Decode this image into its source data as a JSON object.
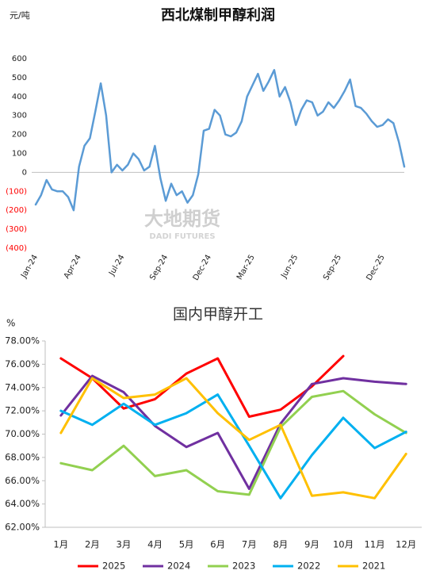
{
  "chart_data": [
    {
      "type": "line",
      "title": "西北煤制甲醇利润",
      "ylabel": "元/吨",
      "watermark": [
        "大地期货",
        "DADI FUTURES"
      ],
      "categories": [
        "Jan-24",
        null,
        null,
        null,
        null,
        null,
        null,
        null,
        "Apr-24",
        null,
        null,
        null,
        null,
        null,
        null,
        null,
        "Jul-24",
        null,
        null,
        null,
        null,
        null,
        null,
        null,
        "Sep-24",
        null,
        null,
        null,
        null,
        null,
        null,
        null,
        "Dec-24",
        null,
        null,
        null,
        null,
        null,
        null,
        null,
        "Mar-25",
        null,
        null,
        null,
        null,
        null,
        null,
        null,
        "Jun-25",
        null,
        null,
        null,
        null,
        null,
        null,
        null,
        "Sep-25",
        null,
        null,
        null,
        null,
        null,
        null,
        null,
        "Dec-25",
        null,
        null,
        null,
        null
      ],
      "series": [
        {
          "name": "西北煤制甲醇利润",
          "color": "#5b9bd5",
          "values": [
            -170,
            -120,
            -40,
            -90,
            -100,
            -100,
            -130,
            -200,
            30,
            140,
            180,
            320,
            470,
            300,
            0,
            40,
            10,
            40,
            100,
            70,
            10,
            30,
            140,
            -30,
            -150,
            -60,
            -120,
            -100,
            -160,
            -120,
            -10,
            220,
            230,
            330,
            300,
            200,
            190,
            210,
            270,
            400,
            460,
            520,
            430,
            480,
            540,
            400,
            450,
            370,
            250,
            330,
            380,
            370,
            300,
            320,
            370,
            340,
            380,
            430,
            490,
            350,
            340,
            310,
            270,
            240,
            250,
            280,
            260,
            160,
            30
          ]
        }
      ],
      "ylim": [
        -400,
        600
      ],
      "yticks": [
        600,
        500,
        400,
        300,
        200,
        100,
        0,
        {
          "value": -100,
          "label": "(100)"
        },
        {
          "value": -200,
          "label": "(200)"
        },
        {
          "value": -300,
          "label": "(300)"
        },
        {
          "value": -400,
          "label": "(400)"
        }
      ],
      "negative_tick_color": "#ff0000",
      "grid": false,
      "legend": false
    },
    {
      "type": "line",
      "title": "国内甲醇开工",
      "ylabel": "%",
      "categories": [
        "1月",
        "2月",
        "3月",
        "4月",
        "5月",
        "6月",
        "7月",
        "8月",
        "9月",
        "10月",
        "11月",
        "12月"
      ],
      "series": [
        {
          "name": "2025",
          "color": "#ff0000",
          "values": [
            76.5,
            74.8,
            72.2,
            73.0,
            75.2,
            76.5,
            71.5,
            72.1,
            74.1,
            76.7,
            null,
            null
          ]
        },
        {
          "name": "2024",
          "color": "#7030a0",
          "values": [
            71.6,
            75.0,
            73.6,
            70.7,
            68.9,
            70.1,
            65.3,
            70.9,
            74.3,
            74.8,
            74.5,
            74.3
          ]
        },
        {
          "name": "2023",
          "color": "#92d050",
          "values": [
            67.5,
            66.9,
            69.0,
            66.4,
            66.9,
            65.1,
            64.8,
            70.6,
            73.2,
            73.7,
            71.7,
            70.1
          ]
        },
        {
          "name": "2022",
          "color": "#00b0f0",
          "values": [
            72.0,
            70.8,
            72.6,
            70.8,
            71.8,
            73.4,
            69.0,
            64.5,
            68.2,
            71.4,
            68.8,
            70.2
          ]
        },
        {
          "name": "2021",
          "color": "#ffc000",
          "values": [
            70.1,
            74.8,
            73.1,
            73.4,
            74.8,
            71.8,
            69.5,
            70.8,
            64.7,
            65.0,
            64.5,
            68.3
          ]
        }
      ],
      "ylim": [
        62,
        78
      ],
      "yticks": [
        {
          "value": 78,
          "label": "78.00%"
        },
        {
          "value": 76,
          "label": "76.00%"
        },
        {
          "value": 74,
          "label": "74.00%"
        },
        {
          "value": 72,
          "label": "72.00%"
        },
        {
          "value": 70,
          "label": "70.00%"
        },
        {
          "value": 68,
          "label": "68.00%"
        },
        {
          "value": 66,
          "label": "66.00%"
        },
        {
          "value": 64,
          "label": "64.00%"
        },
        {
          "value": 62,
          "label": "62.00%"
        }
      ],
      "grid": false,
      "legend": "bottom"
    }
  ]
}
